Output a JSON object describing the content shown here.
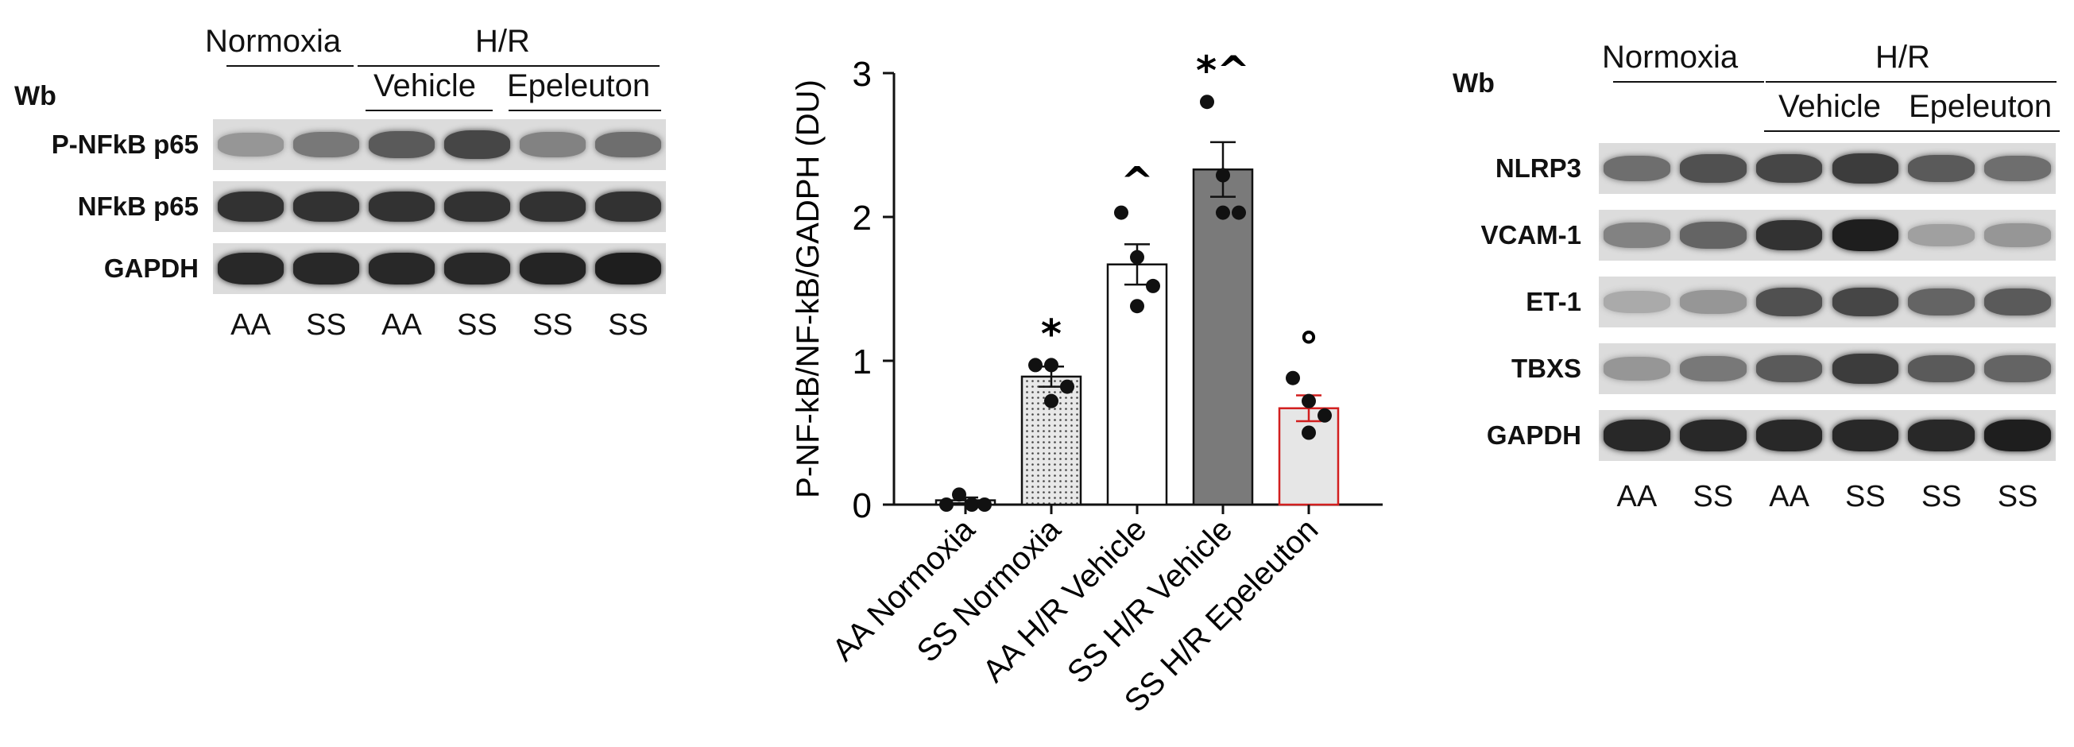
{
  "left_blot": {
    "wb_label": "Wb",
    "headers": {
      "normoxia": "Normoxia",
      "hr": "H/R",
      "vehicle": "Vehicle",
      "epeleuton": "Epeleuton"
    },
    "rows": [
      {
        "label": "P-NFkB p65",
        "intensity": [
          0.35,
          0.5,
          0.65,
          0.75,
          0.45,
          0.55
        ]
      },
      {
        "label": "NFkB p65",
        "intensity": [
          0.85,
          0.85,
          0.85,
          0.85,
          0.85,
          0.85
        ]
      },
      {
        "label": "GAPDH",
        "intensity": [
          0.9,
          0.9,
          0.9,
          0.9,
          0.92,
          0.95
        ]
      }
    ],
    "lanes": [
      "AA",
      "SS",
      "AA",
      "SS",
      "SS",
      "SS"
    ]
  },
  "right_blot": {
    "wb_label": "Wb",
    "headers": {
      "normoxia": "Normoxia",
      "hr": "H/R",
      "vehicle": "Vehicle",
      "epeleuton": "Epeleuton"
    },
    "rows": [
      {
        "label": "NLRP3",
        "intensity": [
          0.55,
          0.7,
          0.75,
          0.8,
          0.65,
          0.55
        ]
      },
      {
        "label": "VCAM-1",
        "intensity": [
          0.45,
          0.6,
          0.85,
          0.95,
          0.3,
          0.35
        ]
      },
      {
        "label": "ET-1",
        "intensity": [
          0.25,
          0.35,
          0.7,
          0.75,
          0.6,
          0.65
        ]
      },
      {
        "label": "TBXS",
        "intensity": [
          0.35,
          0.5,
          0.65,
          0.8,
          0.65,
          0.6
        ]
      },
      {
        "label": "GAPDH",
        "intensity": [
          0.9,
          0.9,
          0.9,
          0.9,
          0.9,
          0.95
        ]
      }
    ],
    "lanes": [
      "AA",
      "SS",
      "AA",
      "SS",
      "SS",
      "SS"
    ]
  },
  "chart_data": {
    "type": "bar",
    "ylabel": "P-NF-kB/NF-kB/GADPH (DU)",
    "ylim": [
      0,
      3
    ],
    "yticks": [
      "0",
      "1",
      "2",
      "3"
    ],
    "categories": [
      "AA Normoxia",
      "SS Normoxia",
      "AA H/R Vehicle",
      "SS H/R Vehicle",
      "SS H/R Epeleuton"
    ],
    "values": [
      0.03,
      0.89,
      1.67,
      2.33,
      0.67
    ],
    "errors": [
      0.02,
      0.07,
      0.14,
      0.19,
      0.09
    ],
    "points": [
      [
        0.0,
        0.07,
        0.0,
        0.0
      ],
      [
        0.97,
        0.97,
        0.82,
        0.72
      ],
      [
        2.03,
        1.72,
        1.52,
        1.38
      ],
      [
        2.8,
        2.29,
        2.03,
        2.03
      ],
      [
        0.88,
        0.72,
        0.62,
        0.5
      ]
    ],
    "annotations": [
      "",
      "*",
      "^",
      "*^",
      "°"
    ],
    "colors": {
      "fills": [
        "#ffffff",
        "#e8e8e8",
        "#ffffff",
        "#7a7a7a",
        "#e6e6e6"
      ],
      "edges": [
        "#111111",
        "#111111",
        "#111111",
        "#111111",
        "#d21f1f"
      ]
    }
  }
}
